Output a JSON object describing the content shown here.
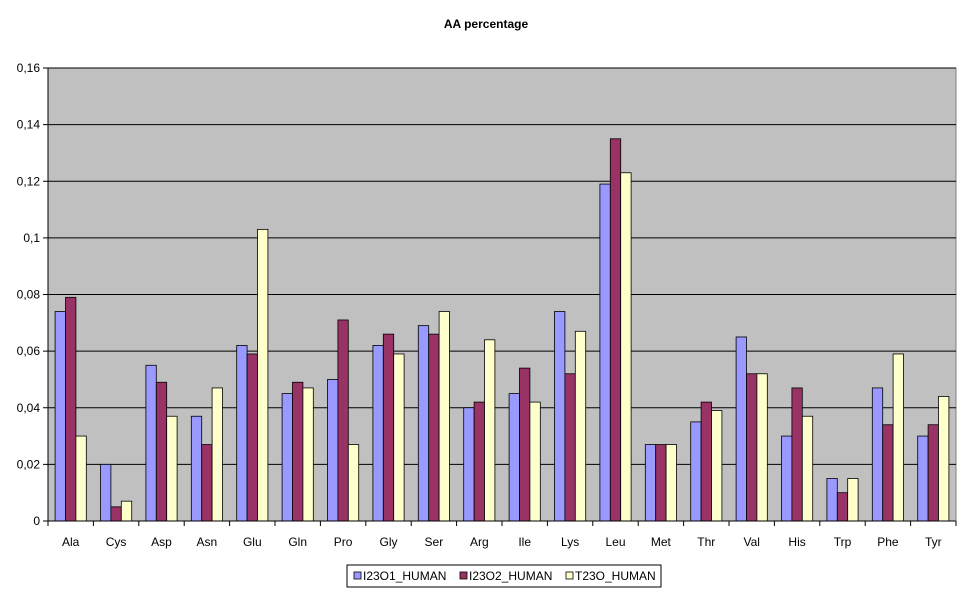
{
  "chart_data": {
    "type": "bar",
    "title": "AA percentage",
    "xlabel": "",
    "ylabel": "",
    "ylim": [
      0,
      0.16
    ],
    "yticks": [
      "0",
      "0,02",
      "0,04",
      "0,06",
      "0,08",
      "0,1",
      "0,12",
      "0,14",
      "0,16"
    ],
    "grid": true,
    "legend_position": "bottom",
    "plot_background": "#c0c0c0",
    "categories": [
      "Ala",
      "Cys",
      "Asp",
      "Asn",
      "Glu",
      "Gln",
      "Pro",
      "Gly",
      "Ser",
      "Arg",
      "Ile",
      "Lys",
      "Leu",
      "Met",
      "Thr",
      "Val",
      "His",
      "Trp",
      "Phe",
      "Tyr"
    ],
    "series": [
      {
        "name": "I23O1_HUMAN",
        "color": "#9999ff",
        "values": [
          0.074,
          0.02,
          0.055,
          0.037,
          0.062,
          0.045,
          0.05,
          0.062,
          0.069,
          0.04,
          0.045,
          0.074,
          0.119,
          0.027,
          0.035,
          0.065,
          0.03,
          0.015,
          0.047,
          0.03
        ]
      },
      {
        "name": "I23O2_HUMAN",
        "color": "#993366",
        "values": [
          0.079,
          0.005,
          0.049,
          0.027,
          0.059,
          0.049,
          0.071,
          0.066,
          0.066,
          0.042,
          0.054,
          0.052,
          0.135,
          0.027,
          0.042,
          0.052,
          0.047,
          0.01,
          0.034,
          0.034
        ]
      },
      {
        "name": "T23O_HUMAN",
        "color": "#ffffcc",
        "values": [
          0.03,
          0.007,
          0.037,
          0.047,
          0.103,
          0.047,
          0.027,
          0.059,
          0.074,
          0.064,
          0.042,
          0.067,
          0.123,
          0.027,
          0.039,
          0.052,
          0.037,
          0.015,
          0.059,
          0.044
        ]
      }
    ]
  }
}
